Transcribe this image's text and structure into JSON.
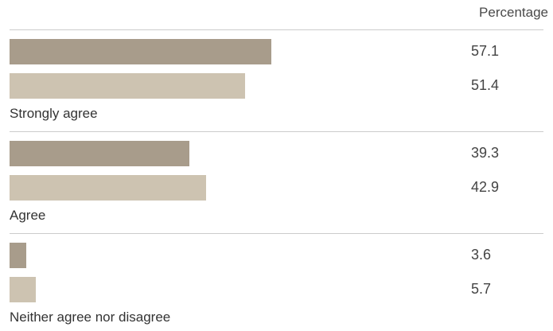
{
  "chart_data": {
    "type": "bar",
    "orientation": "horizontal",
    "column_header": "Percentage",
    "categories": [
      "Strongly agree",
      "Agree",
      "Neither agree nor disagree"
    ],
    "series": [
      {
        "values": [
          57.1,
          39.3,
          3.6
        ],
        "color": "#a89c8b"
      },
      {
        "values": [
          51.4,
          42.9,
          5.7
        ],
        "color": "#cdc3b1"
      }
    ],
    "xlim": [
      0,
      100
    ],
    "grid": false,
    "legend": "none"
  }
}
